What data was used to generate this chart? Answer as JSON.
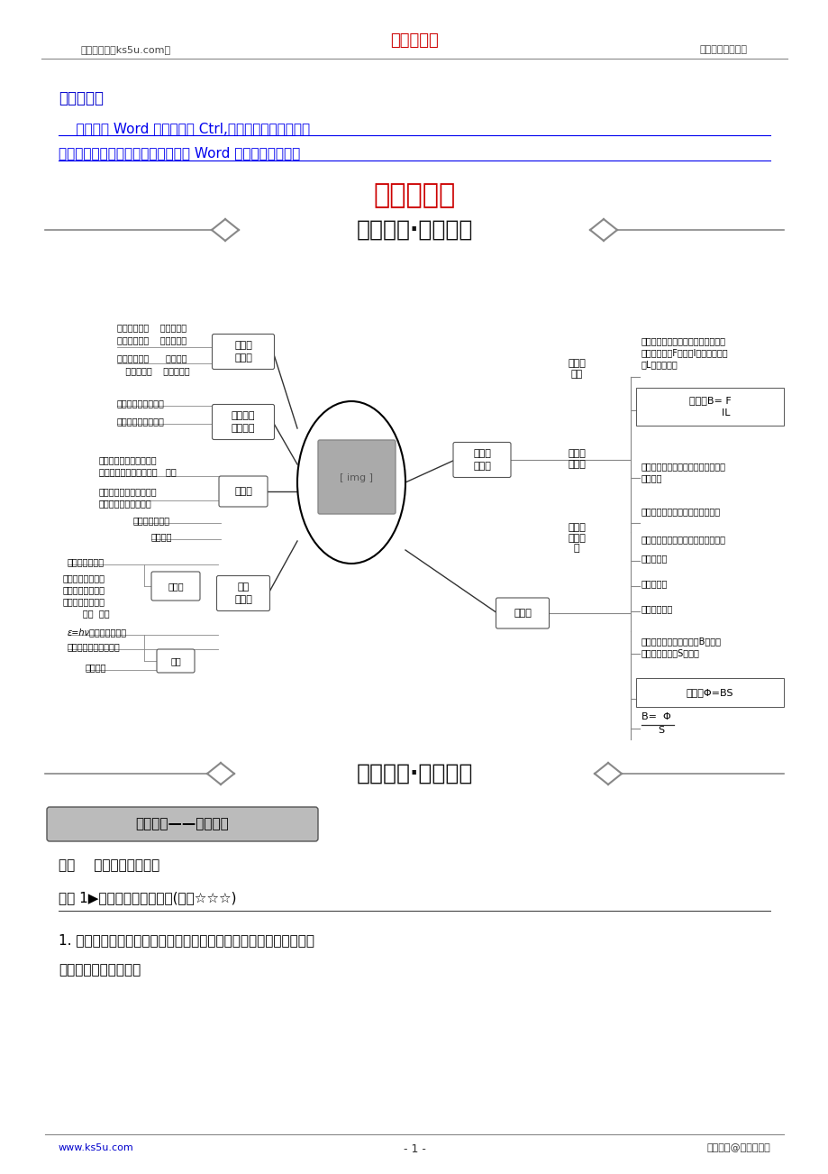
{
  "header_left": "高考资源网（ks5u.com）",
  "header_center": "高考资源网",
  "header_right": "您身边的高考专家",
  "header_center_color": "#cc0000",
  "warm_tip_label": "温馨提示：",
  "warm_tip_label_color": "#0000cc",
  "warm_tip_text1": "    此套题为 Word 版，请按住 Ctrl,滑动鼠标滚轴，调节合",
  "warm_tip_text2": "适的观看比例，答案解析附后。关闭 Word 文档返回原板块。",
  "warm_tip_text_color": "#0000ee",
  "main_title": "阶段提升课",
  "main_title_color": "#cc0000",
  "section1_title": "知识体系·思维导图",
  "section2_title": "考点整合·素养提升",
  "core_label": "核心素养——物理现念",
  "kaodian_text": "考点    磁场的描述及理解",
  "jiaodu_text": "角度 1▶磁感应强度及其叠加(难度☆☆☆)",
  "body_text1": "1. 磁场中某点的磁感应强度的大小只取决于磁场本身，与该点放不放",
  "body_text2": "磁体或通电导体无关。",
  "footer_left": "www.ks5u.com",
  "footer_center": "- 1 -",
  "footer_right": "版权所有@高考资源网",
  "bg_color": "#ffffff"
}
